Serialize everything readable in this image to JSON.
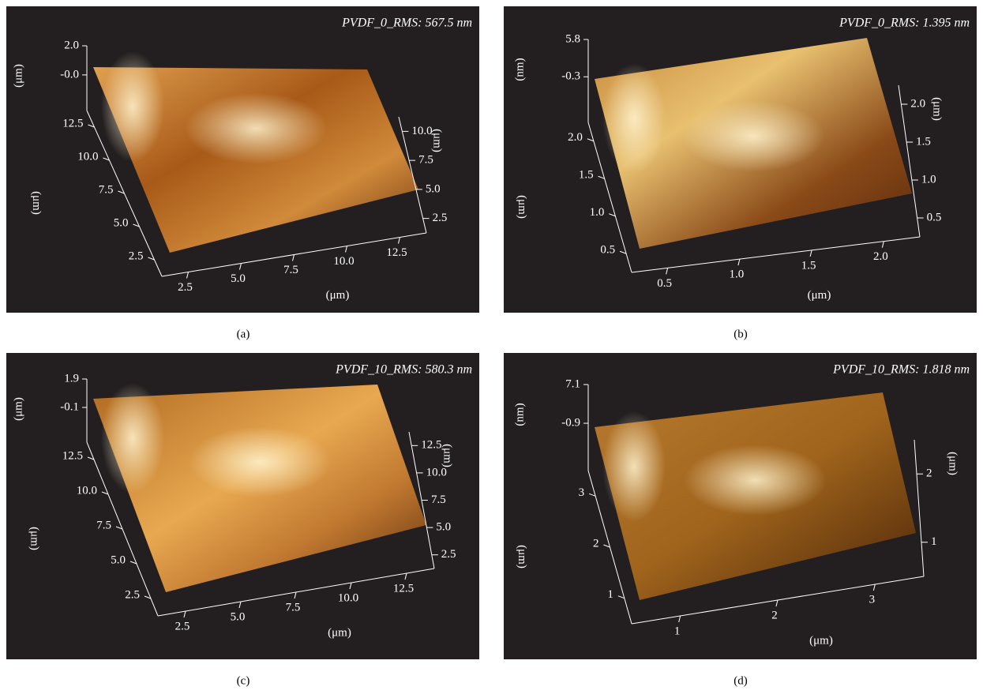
{
  "panels": [
    {
      "title": "PVDF_0_RMS: 567.5 nm",
      "caption": "(a)",
      "z_unit": "(μm)",
      "z_ticks": [
        "2.0",
        "-0.0"
      ],
      "y_unit": "(μm)",
      "y_ticks": [
        "12.5",
        "10.0",
        "7.5",
        "5.0",
        "2.5"
      ],
      "x_unit": "(μm)",
      "x_ticks": [
        "2.5",
        "5.0",
        "7.5",
        "10.0",
        "12.5"
      ],
      "r_unit": "(μm)",
      "r_ticks": [
        "10.0",
        "7.5",
        "5.0",
        "2.5"
      ]
    },
    {
      "title": "PVDF_0_RMS: 1.395 nm",
      "caption": "(b)",
      "z_unit": "(nm)",
      "z_ticks": [
        "5.8",
        "-0.3"
      ],
      "y_unit": "(μm)",
      "y_ticks": [
        "2.0",
        "1.5",
        "1.0",
        "0.5"
      ],
      "x_unit": "(μm)",
      "x_ticks": [
        "0.5",
        "1.0",
        "1.5",
        "2.0"
      ],
      "r_unit": "(μm)",
      "r_ticks": [
        "2.0",
        "1.5",
        "1.0",
        "0.5"
      ]
    },
    {
      "title": "PVDF_10_RMS: 580.3 nm",
      "caption": "(c)",
      "z_unit": "(μm)",
      "z_ticks": [
        "1.9",
        "-0.1"
      ],
      "y_unit": "(μm)",
      "y_ticks": [
        "12.5",
        "10.0",
        "7.5",
        "5.0",
        "2.5"
      ],
      "x_unit": "(μm)",
      "x_ticks": [
        "2.5",
        "5.0",
        "7.5",
        "10.0",
        "12.5"
      ],
      "r_unit": "(μm)",
      "r_ticks": [
        "12.5",
        "10.0",
        "7.5",
        "5.0",
        "2.5"
      ]
    },
    {
      "title": "PVDF_10_RMS: 1.818 nm",
      "caption": "(d)",
      "z_unit": "(nm)",
      "z_ticks": [
        "7.1",
        "-0.9"
      ],
      "y_unit": "(μm)",
      "y_ticks": [
        "3",
        "2",
        "1"
      ],
      "x_unit": "(μm)",
      "x_ticks": [
        "1",
        "2",
        "3"
      ],
      "r_unit": "(μm)",
      "r_ticks": [
        "2",
        "1"
      ]
    }
  ]
}
